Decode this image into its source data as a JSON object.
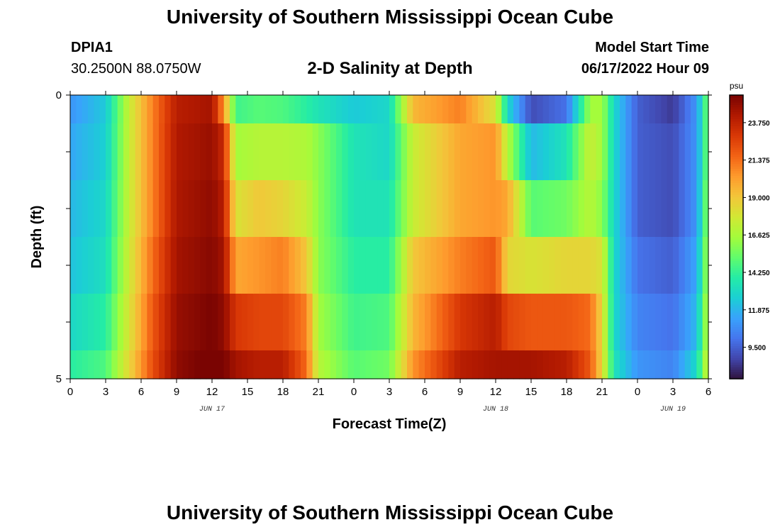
{
  "header": {
    "title": "University of Southern Mississippi Ocean Cube",
    "station_id": "DPIA1",
    "coordinates": "30.2500N  88.0750W",
    "plot_title": "2-D Salinity at Depth",
    "model_start_label": "Model Start Time",
    "model_start_value": "06/17/2022 Hour 09"
  },
  "footer": {
    "title": "University of Southern Mississippi Ocean Cube"
  },
  "colors": {
    "axis": "#000000",
    "colormap": [
      "#30123b",
      "#4145ab",
      "#4675ed",
      "#39a2fc",
      "#1bcfd4",
      "#24eca6",
      "#61fc6c",
      "#a4fc3b",
      "#d1e834",
      "#f3c63a",
      "#fe9b2d",
      "#f36315",
      "#d93806",
      "#b11901",
      "#7a0402"
    ]
  },
  "chart_data": {
    "type": "heatmap",
    "title": "2-D Salinity at Depth",
    "xlabel": "Forecast Time(Z)",
    "ylabel": "Depth (ft)",
    "x_unit": "hours since 06/17/2022 00Z",
    "xlim": [
      0,
      54
    ],
    "ylim": [
      0,
      5
    ],
    "x_tick_labels": [
      "0",
      "3",
      "6",
      "9",
      "12",
      "15",
      "18",
      "21",
      "0",
      "3",
      "6",
      "9",
      "12",
      "15",
      "18",
      "21",
      "0",
      "3",
      "6"
    ],
    "x_ticks": [
      0,
      3,
      6,
      9,
      12,
      15,
      18,
      21,
      24,
      27,
      30,
      33,
      36,
      39,
      42,
      45,
      48,
      51,
      54
    ],
    "y_tick_labels": [
      "0",
      "5"
    ],
    "y_ticks": [
      0,
      5
    ],
    "date_labels": [
      {
        "text": "JUN 17",
        "x": 12
      },
      {
        "text": "JUN 18",
        "x": 36
      },
      {
        "text": "JUN 19",
        "x": 51
      }
    ],
    "colorbar": {
      "unit": "psu",
      "min": 7.5,
      "max": 25.5,
      "ticks": [
        9.5,
        11.875,
        14.25,
        16.625,
        19.0,
        21.375,
        23.75
      ],
      "tick_labels": [
        "9.500",
        "11.875",
        "14.250",
        "16.625",
        "19.000",
        "21.375",
        "23.750"
      ]
    },
    "depth_levels": [
      0,
      1,
      2,
      3,
      4,
      5
    ],
    "time_knots": [
      {
        "t": 0,
        "v": [
          11.0,
          11.5,
          12.0,
          12.3,
          13.0,
          14.0
        ]
      },
      {
        "t": 3,
        "v": [
          12.5,
          12.7,
          13.0,
          13.3,
          14.0,
          14.8
        ]
      },
      {
        "t": 5,
        "v": [
          17.5,
          17.5,
          17.5,
          17.7,
          18.0,
          18.5
        ]
      },
      {
        "t": 7,
        "v": [
          21.0,
          21.0,
          21.0,
          21.5,
          22.0,
          22.3
        ]
      },
      {
        "t": 9,
        "v": [
          24.0,
          24.2,
          24.3,
          24.5,
          24.8,
          25.0
        ]
      },
      {
        "t": 12,
        "v": [
          24.5,
          24.8,
          25.0,
          25.2,
          25.5,
          25.8
        ]
      },
      {
        "t": 13,
        "v": [
          20.5,
          23.5,
          24.0,
          24.5,
          25.0,
          25.5
        ]
      },
      {
        "t": 14,
        "v": [
          14.5,
          16.5,
          18.0,
          20.0,
          23.0,
          24.5
        ]
      },
      {
        "t": 16,
        "v": [
          15.0,
          17.0,
          19.0,
          20.5,
          22.5,
          24.0
        ]
      },
      {
        "t": 18,
        "v": [
          14.8,
          17.0,
          18.5,
          21.0,
          22.5,
          24.0
        ]
      },
      {
        "t": 20,
        "v": [
          14.0,
          16.8,
          17.5,
          19.0,
          21.0,
          21.5
        ]
      },
      {
        "t": 21,
        "v": [
          13.5,
          16.0,
          16.0,
          16.0,
          16.5,
          17.0
        ]
      },
      {
        "t": 24,
        "v": [
          12.5,
          13.5,
          13.5,
          14.0,
          14.5,
          15.0
        ]
      },
      {
        "t": 27,
        "v": [
          13.0,
          13.0,
          13.5,
          14.0,
          14.8,
          15.5
        ]
      },
      {
        "t": 29,
        "v": [
          19.5,
          17.5,
          17.5,
          19.0,
          19.5,
          20.5
        ]
      },
      {
        "t": 33,
        "v": [
          21.0,
          20.0,
          20.0,
          21.0,
          23.0,
          24.0
        ]
      },
      {
        "t": 36,
        "v": [
          18.0,
          20.5,
          20.5,
          22.0,
          24.0,
          24.5
        ]
      },
      {
        "t": 37,
        "v": [
          13.0,
          17.0,
          20.0,
          18.5,
          22.5,
          24.5
        ]
      },
      {
        "t": 39,
        "v": [
          9.0,
          12.0,
          15.0,
          18.0,
          22.0,
          24.5
        ]
      },
      {
        "t": 42,
        "v": [
          10.0,
          13.5,
          15.5,
          18.5,
          22.0,
          24.0
        ]
      },
      {
        "t": 44,
        "v": [
          16.5,
          17.5,
          17.0,
          18.5,
          21.5,
          22.0
        ]
      },
      {
        "t": 45,
        "v": [
          16.5,
          16.5,
          16.0,
          18.0,
          18.5,
          18.5
        ]
      },
      {
        "t": 46,
        "v": [
          13.0,
          13.0,
          13.0,
          13.0,
          13.0,
          13.5
        ]
      },
      {
        "t": 48,
        "v": [
          9.5,
          9.5,
          9.5,
          10.0,
          10.5,
          11.0
        ]
      },
      {
        "t": 51,
        "v": [
          8.5,
          9.0,
          9.0,
          9.5,
          10.0,
          10.5
        ]
      },
      {
        "t": 53,
        "v": [
          11.0,
          11.0,
          11.0,
          11.5,
          12.0,
          13.0
        ]
      },
      {
        "t": 54,
        "v": [
          16.0,
          16.0,
          16.5,
          17.0,
          17.5,
          18.0
        ]
      }
    ]
  }
}
